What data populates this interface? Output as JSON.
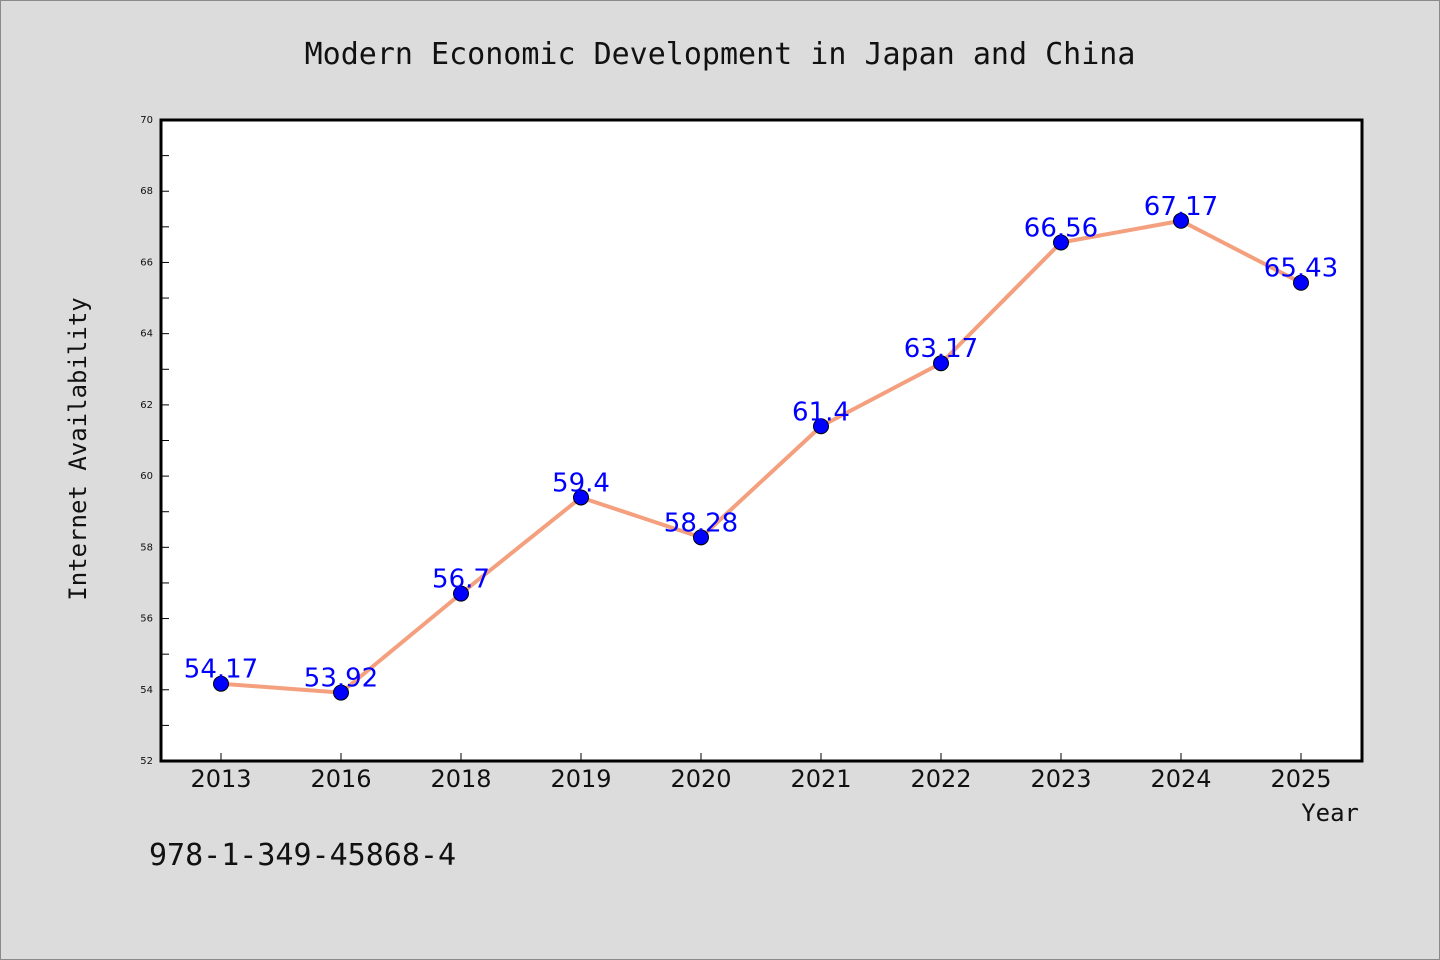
{
  "chart_data": {
    "type": "line",
    "title": "Modern Economic Development in Japan and China",
    "xlabel": "Year",
    "ylabel": "Internet Availability",
    "categories": [
      "2013",
      "2016",
      "2018",
      "2019",
      "2020",
      "2021",
      "2022",
      "2023",
      "2024",
      "2025"
    ],
    "series": [
      {
        "values": [
          54.17,
          53.92,
          56.7,
          59.4,
          58.28,
          61.4,
          63.17,
          66.56,
          67.17,
          65.43
        ],
        "labels": [
          "54.17",
          "53.92",
          "56.7",
          "59.4",
          "58.28",
          "61.4",
          "63.17",
          "66.56",
          "67.17",
          "65.43"
        ],
        "line_color": "#f4a07e",
        "marker_color": "#0000ff"
      }
    ],
    "ylim": [
      52,
      70
    ],
    "yticks": [
      "52",
      "54",
      "56",
      "58",
      "60",
      "62",
      "64",
      "66",
      "68",
      "70"
    ],
    "grid": false,
    "legend": "none",
    "background_color": "#dcdcdc",
    "plot_background_color": "#ffffff",
    "data_label_color": "#0000ff"
  },
  "footer": {
    "isbn": "978-1-349-45868-4"
  }
}
